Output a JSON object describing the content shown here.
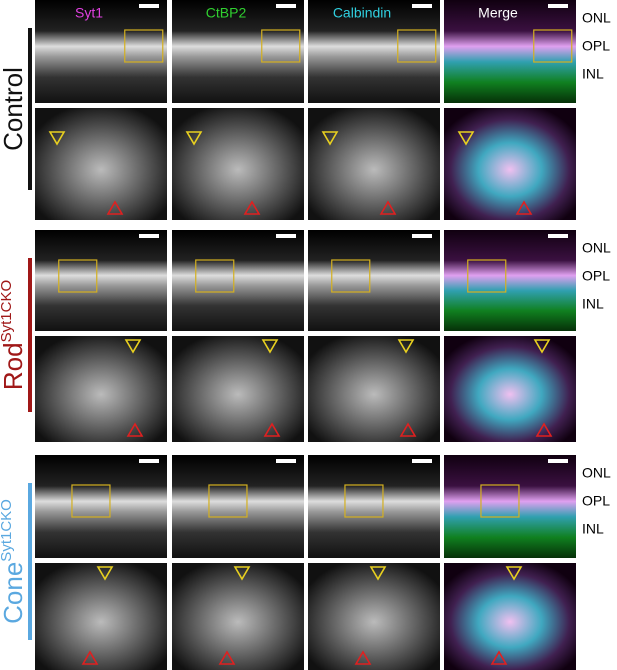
{
  "columns": [
    "Syt1",
    "CtBP2",
    "Calbindin",
    "Merge"
  ],
  "groups": [
    {
      "label": "Control",
      "layers": [
        "ONL",
        "OPL",
        "INL"
      ]
    },
    {
      "label": "Rod",
      "superscript": "Syt1CKO",
      "layers": [
        "ONL",
        "OPL",
        "INL"
      ]
    },
    {
      "label": "Cone",
      "superscript": "Syt1CKO",
      "layers": [
        "ONL",
        "OPL",
        "INL"
      ]
    }
  ]
}
